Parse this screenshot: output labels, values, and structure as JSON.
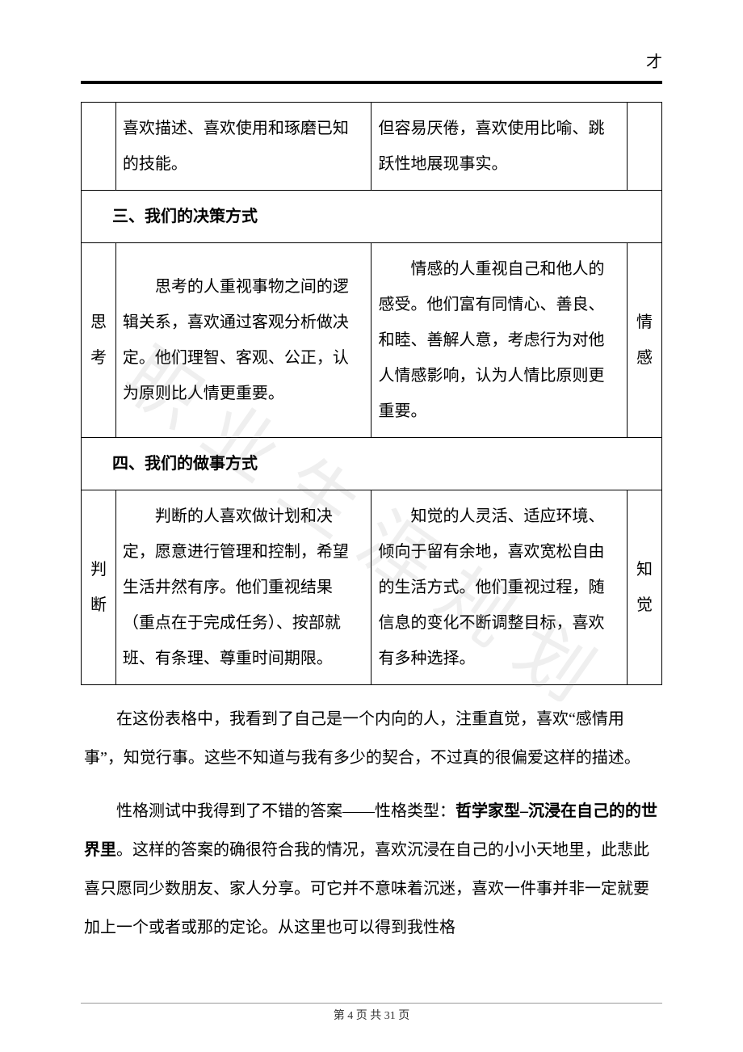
{
  "header_mark": "才",
  "watermark_text": "职业生涯规划",
  "table": {
    "row1": {
      "left_label": "",
      "left_text": "喜欢描述、喜欢使用和琢磨已知的技能。",
      "right_text": "但容易厌倦，喜欢使用比喻、跳跃性地展现事实。",
      "right_label": ""
    },
    "section3": "三、我们的决策方式",
    "row3": {
      "left_label": "思考",
      "left_text": "思考的人重视事物之间的逻辑关系，喜欢通过客观分析做决定。他们理智、客观、公正，认为原则比人情更重要。",
      "right_text": "情感的人重视自己和他人的感受。他们富有同情心、善良、和睦、善解人意，考虑行为对他人情感影响，认为人情比原则更重要。",
      "right_label": "情感"
    },
    "section4": "四、我们的做事方式",
    "row4": {
      "left_label": "判断",
      "left_text": "判断的人喜欢做计划和决定，愿意进行管理和控制，希望生活井然有序。他们重视结果（重点在于完成任务）、按部就班、有条理、尊重时间期限。",
      "right_text": "知觉的人灵活、适应环境、倾向于留有余地，喜欢宽松自由的生活方式。他们重视过程，随信息的变化不断调整目标，喜欢有多种选择。",
      "right_label": "知觉"
    }
  },
  "para1": "在这份表格中，我看到了自己是一个内向的人，注重直觉，喜欢“感情用事”，知觉行事。这些不知道与我有多少的契合，不过真的很偏爱这样的描述。",
  "para2_prefix": "性格测试中我得到了不错的答案——性格类型：",
  "para2_bold": "哲学家型–沉浸在自己的的世界里",
  "para2_suffix": "。这样的答案的确很符合我的情况，喜欢沉浸在自己的小小天地里，此悲此喜只愿同少数朋友、家人分享。可它并不意味着沉迷，喜欢一件事并非一定就要加上一个或者或那的定论。从这里也可以得到我性格",
  "footer": {
    "prefix": "第 ",
    "current": "4",
    "mid": " 页 共 ",
    "total": "31",
    "suffix": " 页"
  }
}
